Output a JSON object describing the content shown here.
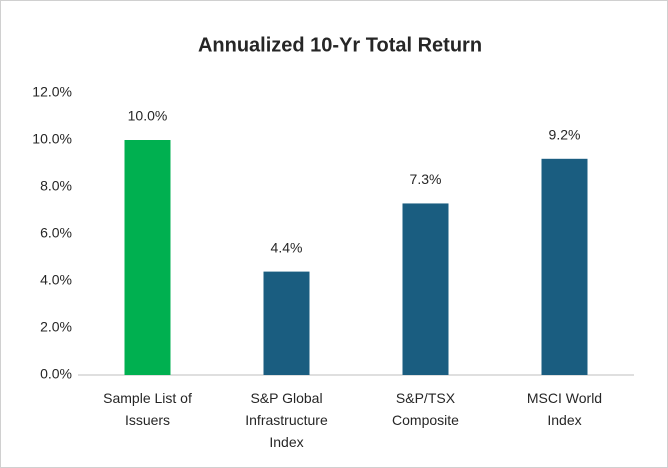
{
  "chart_data": {
    "type": "bar",
    "title": "Annualized 10-Yr Total Return",
    "categories": [
      "Sample List of Issuers",
      "S&P Global Infrastructure Index",
      "S&P/TSX Composite",
      "MSCI World Index"
    ],
    "values": [
      10.0,
      4.4,
      7.3,
      9.2
    ],
    "value_labels": [
      "10.0%",
      "4.4%",
      "7.3%",
      "9.2%"
    ],
    "colors": [
      "#00b050",
      "#1a5d80",
      "#1a5d80",
      "#1a5d80"
    ],
    "ylim": [
      0,
      12
    ],
    "yticks": [
      {
        "value": 0,
        "label": "0.0%"
      },
      {
        "value": 2,
        "label": "2.0%"
      },
      {
        "value": 4,
        "label": "4.0%"
      },
      {
        "value": 6,
        "label": "6.0%"
      },
      {
        "value": 8,
        "label": "8.0%"
      },
      {
        "value": 10,
        "label": "10.0%"
      },
      {
        "value": 12,
        "label": "12.0%"
      }
    ],
    "grid": false
  }
}
